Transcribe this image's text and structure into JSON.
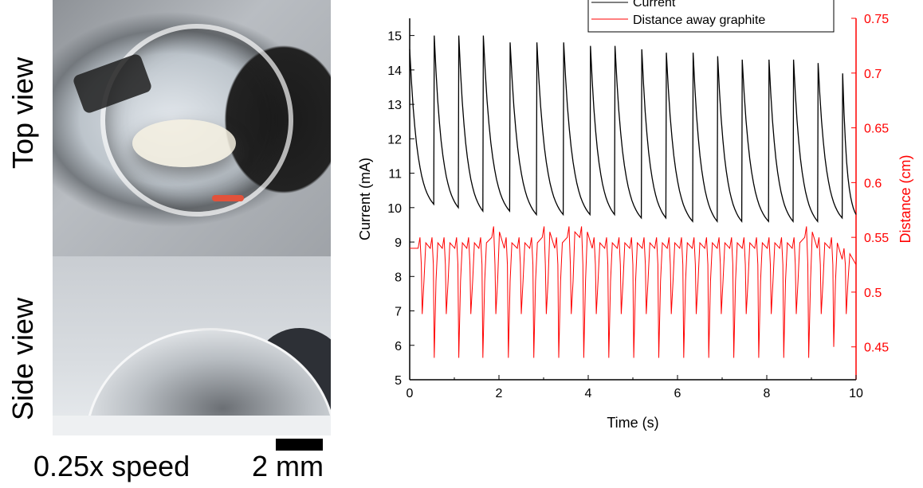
{
  "photos": {
    "top_label": "Top view",
    "side_label": "Side view",
    "speed_label": "0.25x speed",
    "scale_label": "2 mm"
  },
  "colors": {
    "current": "#000000",
    "distance": "#ff0000"
  },
  "chart_data": {
    "type": "line",
    "xlabel": "Time (s)",
    "ylabel": "Current (mA)",
    "y2label": "Distance (cm)",
    "xlim": [
      0,
      10
    ],
    "ylim": [
      5,
      15.5
    ],
    "y2lim": [
      0.42,
      0.75
    ],
    "x_ticks": [
      0,
      2,
      4,
      6,
      8,
      10
    ],
    "y_ticks": [
      5,
      6,
      7,
      8,
      9,
      10,
      11,
      12,
      13,
      14,
      15
    ],
    "y2_ticks": [
      0.45,
      0.5,
      0.55,
      0.6,
      0.65,
      0.7,
      0.75
    ],
    "legend": {
      "placement": "top-right",
      "entries": [
        "Current",
        "Distance away graphite"
      ]
    },
    "series": [
      {
        "name": "Current",
        "axis": "left",
        "color": "#000000",
        "peaks": [
          {
            "t": 0.55,
            "max": 15.0,
            "min": 10.1
          },
          {
            "t": 1.1,
            "max": 15.0,
            "min": 10.0
          },
          {
            "t": 1.65,
            "max": 15.0,
            "min": 9.9
          },
          {
            "t": 2.25,
            "max": 14.8,
            "min": 9.9
          },
          {
            "t": 2.85,
            "max": 14.8,
            "min": 9.8
          },
          {
            "t": 3.45,
            "max": 14.8,
            "min": 9.8
          },
          {
            "t": 4.05,
            "max": 14.7,
            "min": 9.8
          },
          {
            "t": 4.6,
            "max": 14.7,
            "min": 9.8
          },
          {
            "t": 5.2,
            "max": 14.6,
            "min": 9.7
          },
          {
            "t": 5.75,
            "max": 14.5,
            "min": 9.7
          },
          {
            "t": 6.35,
            "max": 14.5,
            "min": 9.6
          },
          {
            "t": 6.9,
            "max": 14.4,
            "min": 9.6
          },
          {
            "t": 7.45,
            "max": 14.3,
            "min": 9.6
          },
          {
            "t": 8.05,
            "max": 14.3,
            "min": 9.6
          },
          {
            "t": 8.6,
            "max": 14.3,
            "min": 9.6
          },
          {
            "t": 9.15,
            "max": 14.2,
            "min": 9.6
          },
          {
            "t": 9.7,
            "max": 13.9,
            "min": 9.7
          }
        ],
        "start": {
          "t": 0.0,
          "value": 14.6
        },
        "end": {
          "t": 10.0,
          "value": 9.8
        }
      },
      {
        "name": "Distance away graphite",
        "axis": "right",
        "color": "#ff0000",
        "baseline": 0.54,
        "dips": [
          0.28,
          0.55,
          0.82,
          1.1,
          1.37,
          1.64,
          1.93,
          2.21,
          2.5,
          2.78,
          3.06,
          3.34,
          3.62,
          3.9,
          4.18,
          4.46,
          4.74,
          5.02,
          5.3,
          5.58,
          5.86,
          6.14,
          6.42,
          6.7,
          6.98,
          7.26,
          7.54,
          7.82,
          8.1,
          8.38,
          8.66,
          8.94,
          9.22,
          9.5,
          9.78
        ],
        "dip_min": [
          0.48,
          0.44,
          0.48,
          0.44,
          0.48,
          0.44,
          0.48,
          0.44,
          0.48,
          0.44,
          0.48,
          0.44,
          0.48,
          0.44,
          0.48,
          0.44,
          0.48,
          0.44,
          0.48,
          0.44,
          0.48,
          0.44,
          0.48,
          0.44,
          0.48,
          0.44,
          0.48,
          0.44,
          0.48,
          0.44,
          0.48,
          0.44,
          0.48,
          0.45,
          0.48
        ],
        "peak_max": [
          0.55,
          0.55,
          0.55,
          0.55,
          0.55,
          0.55,
          0.56,
          0.55,
          0.55,
          0.55,
          0.56,
          0.55,
          0.56,
          0.56,
          0.55,
          0.55,
          0.55,
          0.55,
          0.55,
          0.55,
          0.55,
          0.55,
          0.55,
          0.55,
          0.55,
          0.55,
          0.55,
          0.55,
          0.55,
          0.55,
          0.55,
          0.56,
          0.55,
          0.55,
          0.54
        ]
      }
    ]
  }
}
